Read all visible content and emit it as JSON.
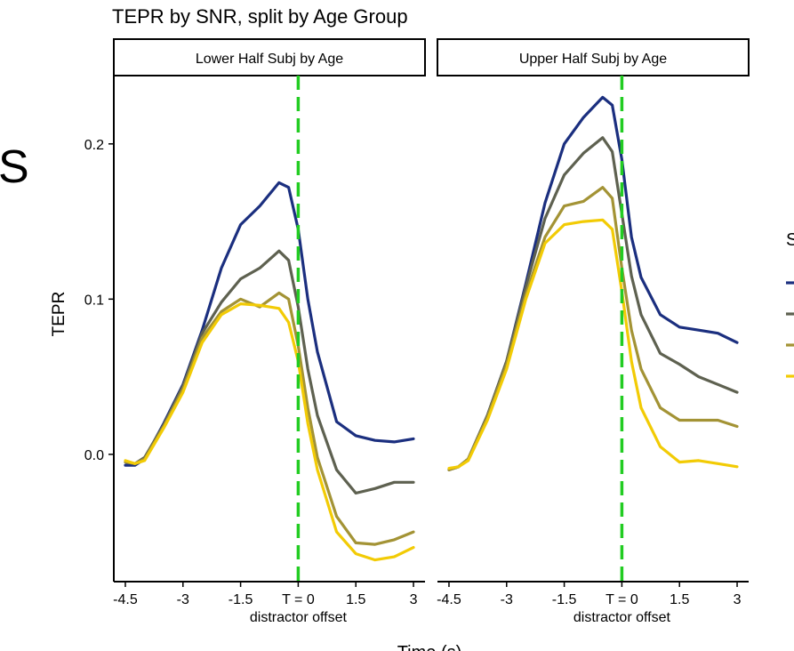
{
  "chart_data": {
    "type": "line",
    "title": "TEPR by SNR, split by Age Group",
    "ylabel": "TEPR",
    "xlabel": "Time (s)",
    "xlim": [
      -4.8,
      3.3
    ],
    "ylim": [
      -0.082,
      0.244
    ],
    "x_ticks": [
      -4.5,
      -3,
      -1.5,
      0,
      1.5,
      3
    ],
    "x_tick_labels": [
      "-4.5",
      "-3",
      "-1.5",
      "T = 0",
      "1.5",
      "3"
    ],
    "x_tick_sublabel": "distractor offset",
    "y_ticks": [
      0.0,
      0.1,
      0.2
    ],
    "y_tick_labels": [
      "0.0",
      "0.1",
      "0.2"
    ],
    "vline_x": 0,
    "vline_color": "#22cc22",
    "grid": false,
    "left_edge_letter": "S",
    "legend_title_fragment": "S",
    "legend_placement": "right",
    "x": [
      -4.5,
      -4.25,
      -4,
      -3.5,
      -3,
      -2.5,
      -2,
      -1.5,
      -1,
      -0.5,
      -0.25,
      0,
      0.25,
      0.5,
      1,
      1.5,
      2,
      2.5,
      3
    ],
    "panels": [
      {
        "label": "Lower Half Subj by Age",
        "series": [
          {
            "color": "#1b2f7f",
            "values": [
              -0.007,
              -0.007,
              -0.003,
              0.02,
              0.045,
              0.08,
              0.12,
              0.148,
              0.16,
              0.175,
              0.172,
              0.145,
              0.1,
              0.066,
              0.021,
              0.012,
              0.009,
              0.008,
              0.01
            ]
          },
          {
            "color": "#5e6150",
            "values": [
              -0.005,
              -0.006,
              -0.002,
              0.019,
              0.044,
              0.078,
              0.098,
              0.113,
              0.12,
              0.131,
              0.125,
              0.095,
              0.055,
              0.025,
              -0.01,
              -0.025,
              -0.022,
              -0.018,
              -0.018
            ]
          },
          {
            "color": "#a39335",
            "values": [
              -0.005,
              -0.006,
              -0.003,
              0.018,
              0.042,
              0.075,
              0.092,
              0.1,
              0.095,
              0.104,
              0.1,
              0.07,
              0.03,
              -0.002,
              -0.04,
              -0.057,
              -0.058,
              -0.055,
              -0.05
            ]
          },
          {
            "color": "#f2cb05",
            "values": [
              -0.004,
              -0.006,
              -0.004,
              0.017,
              0.04,
              0.072,
              0.09,
              0.097,
              0.096,
              0.094,
              0.085,
              0.06,
              0.02,
              -0.01,
              -0.05,
              -0.064,
              -0.068,
              -0.066,
              -0.06
            ]
          }
        ]
      },
      {
        "label": "Upper Half Subj by Age",
        "series": [
          {
            "color": "#1b2f7f",
            "values": [
              -0.01,
              -0.008,
              -0.003,
              0.025,
              0.06,
              0.11,
              0.162,
              0.2,
              0.217,
              0.23,
              0.225,
              0.19,
              0.14,
              0.114,
              0.09,
              0.082,
              0.08,
              0.078,
              0.072
            ]
          },
          {
            "color": "#5e6150",
            "values": [
              -0.01,
              -0.008,
              -0.003,
              0.025,
              0.06,
              0.108,
              0.152,
              0.18,
              0.194,
              0.204,
              0.195,
              0.155,
              0.115,
              0.09,
              0.065,
              0.058,
              0.05,
              0.045,
              0.04
            ]
          },
          {
            "color": "#a39335",
            "values": [
              -0.01,
              -0.008,
              -0.003,
              0.024,
              0.058,
              0.103,
              0.14,
              0.16,
              0.163,
              0.172,
              0.165,
              0.12,
              0.08,
              0.055,
              0.03,
              0.022,
              0.022,
              0.022,
              0.018
            ]
          },
          {
            "color": "#f2cb05",
            "values": [
              -0.009,
              -0.008,
              -0.004,
              0.022,
              0.055,
              0.1,
              0.136,
              0.148,
              0.15,
              0.151,
              0.145,
              0.105,
              0.06,
              0.03,
              0.005,
              -0.005,
              -0.004,
              -0.006,
              -0.008
            ]
          }
        ]
      }
    ]
  }
}
